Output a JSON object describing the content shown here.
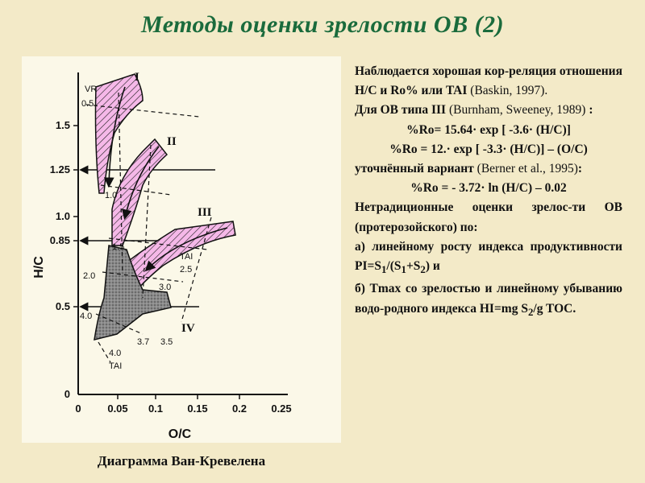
{
  "slide": {
    "title": "Методы оценки зрелости ОВ (2)",
    "caption": "Диаграмма Ван-Кревелена"
  },
  "text": {
    "p1_main": "Наблюдается хорошая кор-реляция отношения H/C и Ro% или TAI",
    "p1_cite": "(Baskin, 1997).",
    "p2_main": "Для ОВ типа III",
    "p2_cite": "(Burnham, Sweeney, 1989)",
    "p2_colon": ":",
    "formula1": "%Ro= 15.64· exp [ -3.6· (H/C)]",
    "formula2": "%Ro = 12.· exp [ -3.3· (H/C)] – (O/C)",
    "p3_main": "уточнённый вариант",
    "p3_cite": "(Berner et al., 1995)",
    "p3_colon": ":",
    "formula3": "%Ro = - 3.72· ln (H/C) – 0.02",
    "p4": "Нетрадиционные оценки зрелос-ти ОВ (протерозойского) по:",
    "p5_a": "а) линейному росту индекса продуктивности PI=S",
    "p5_sub1": "1",
    "p5_mid": "/(S",
    "p5_sub2": "1",
    "p5_plus": "+S",
    "p5_sub3": "2",
    "p5_end": ") и",
    "p6": "б) Tmax со зрелостью и линейному убыванию водо-родного индекса HI=mg S",
    "p6_sub": "2",
    "p6_end": "/g TOC."
  },
  "chart_data": {
    "type": "diagram",
    "xlabel": "O/C",
    "ylabel": "H/C",
    "x_ticks": [
      "0",
      "0.05",
      "0.1",
      "0.15",
      "0.2",
      "0.25"
    ],
    "y_ticks": [
      "0",
      "0.5",
      "0.85",
      "1.0",
      "1.25",
      "1.5"
    ],
    "xlim": [
      0,
      0.25
    ],
    "ylim": [
      0,
      1.75
    ],
    "kerogen_types": [
      "I",
      "II",
      "III",
      "IV"
    ],
    "ro_labels": [
      "VR",
      "0.5",
      "1.0",
      "1.5",
      "2.0",
      "4.0"
    ],
    "tai_labels": [
      "TAI",
      "2.5",
      "3.0",
      "3.7",
      "3.5",
      "4.0",
      "TAI"
    ],
    "colors": {
      "pathway_fill": "#f5b8e8",
      "mature_fill": "#8a8a8a",
      "text_green": "#1a6b3c"
    }
  }
}
